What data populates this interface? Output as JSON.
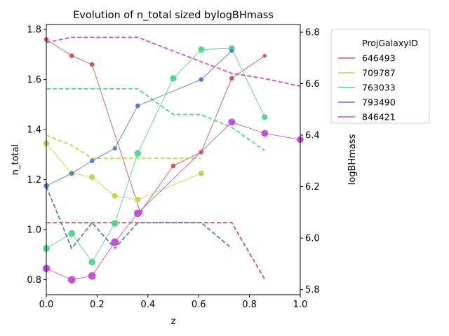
{
  "chart_data": {
    "type": "line",
    "title": "Evolution of n_total sized bylogBHmass",
    "xlabel": "z",
    "ylabel_left": "n_total",
    "ylabel_right": "logBHmass",
    "xlim": [
      0,
      1
    ],
    "ylim_left": [
      0.74,
      1.82
    ],
    "ylim_right": [
      5.78,
      6.83
    ],
    "xticks": [
      "0.0",
      "0.2",
      "0.4",
      "0.6",
      "0.8",
      "1.0"
    ],
    "xtick_values": [
      0,
      0.2,
      0.4,
      0.6,
      0.8,
      1.0
    ],
    "yticks_left": [
      "0.8",
      "1.0",
      "1.2",
      "1.4",
      "1.6",
      "1.8"
    ],
    "ytick_values_left": [
      0.8,
      1.0,
      1.2,
      1.4,
      1.6,
      1.8
    ],
    "yticks_right": [
      "5.8",
      "6.0",
      "6.2",
      "6.4",
      "6.6",
      "6.8"
    ],
    "ytick_values_right": [
      5.8,
      6.0,
      6.2,
      6.4,
      6.6,
      6.8
    ],
    "grid": false,
    "legend_title": "ProjGalaxyID",
    "legend_position": "outside-right",
    "series": [
      {
        "name": "646493",
        "color": "#d9534f",
        "x": [
          0,
          0.1,
          0.18,
          0.37,
          0.5,
          0.61,
          0.73,
          0.86
        ],
        "n_total": [
          1.76,
          1.695,
          1.66,
          1.07,
          1.255,
          1.31,
          1.605,
          1.695
        ],
        "logBHmass": [
          6.06,
          6.06,
          6.06,
          6.06,
          6.06,
          6.06,
          6.06,
          5.84
        ]
      },
      {
        "name": "709787",
        "color": "#bcd94f",
        "x": [
          0,
          0.1,
          0.18,
          0.27,
          0.36,
          0.61
        ],
        "n_total": [
          1.345,
          1.225,
          1.21,
          1.135,
          1.12,
          1.225
        ],
        "logBHmass": [
          6.4,
          6.36,
          6.31,
          6.31,
          6.31,
          6.31
        ]
      },
      {
        "name": "763033",
        "color": "#4fd98a",
        "x": [
          0,
          0.1,
          0.18,
          0.27,
          0.36,
          0.5,
          0.61,
          0.73,
          0.86
        ],
        "n_total": [
          0.925,
          0.985,
          0.87,
          1.025,
          1.305,
          1.605,
          1.72,
          1.725,
          1.45
        ],
        "logBHmass": [
          6.58,
          6.58,
          6.58,
          6.58,
          6.58,
          6.48,
          6.48,
          6.43,
          6.34
        ]
      },
      {
        "name": "793490",
        "color": "#4f7fd9",
        "x": [
          0,
          0.1,
          0.18,
          0.27,
          0.36,
          0.61,
          0.73
        ],
        "n_total": [
          1.175,
          1.225,
          1.275,
          1.325,
          1.495,
          1.6,
          1.715
        ],
        "logBHmass": [
          6.2,
          5.96,
          6.06,
          5.96,
          6.06,
          6.06,
          5.96
        ]
      },
      {
        "name": "846421",
        "color": "#c64fd9",
        "x": [
          0,
          0.1,
          0.18,
          0.27,
          0.36,
          0.73,
          0.86,
          1.0
        ],
        "n_total": [
          0.845,
          0.8,
          0.815,
          0.95,
          1.065,
          1.43,
          1.385,
          1.36
        ],
        "logBHmass": [
          6.76,
          6.78,
          6.78,
          6.78,
          6.78,
          6.64,
          6.62,
          6.59
        ]
      }
    ]
  }
}
